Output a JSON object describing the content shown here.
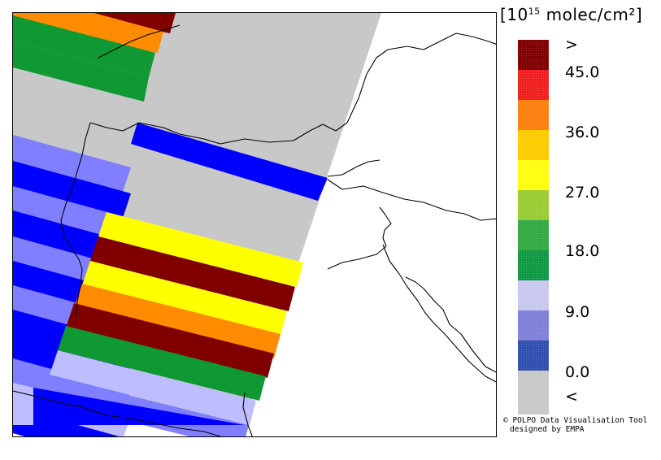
{
  "legend": {
    "unit_prefix": "[10",
    "unit_exponent": "15",
    "unit_suffix": " molec/cm²]",
    "classes": [
      {
        "label": ">",
        "color": "#800000"
      },
      {
        "label": "45.0",
        "color": "#f02020"
      },
      {
        "label": "",
        "color": "#ff8010"
      },
      {
        "label": "36.0",
        "color": "#ffcc00"
      },
      {
        "label": "",
        "color": "#ffff10"
      },
      {
        "label": "27.0",
        "color": "#99cc33"
      },
      {
        "label": "",
        "color": "#33aa44"
      },
      {
        "label": "18.0",
        "color": "#109944"
      },
      {
        "label": "",
        "color": "#c8c8f0"
      },
      {
        "label": "9.0",
        "color": "#8080d8"
      },
      {
        "label": "",
        "color": "#3050b0"
      },
      {
        "label": "0.0",
        "color": "#c8c8c8"
      },
      {
        "label": "<",
        "color": "#c8c8c8"
      }
    ]
  },
  "map": {
    "no_data_color": "#c8c8c8",
    "palette": {
      "darkred": "#800000",
      "orange": "#ff8c00",
      "yellow": "#ffff00",
      "green": "#109933",
      "blue": "#0000ff",
      "mediumblue": "#7f7fff",
      "lightblue": "#bdbdff",
      "gray": "#c8c8c8"
    }
  },
  "credit": {
    "line1": "© POLPO Data Visualisation Tool",
    "line2": "designed by EMPA"
  }
}
